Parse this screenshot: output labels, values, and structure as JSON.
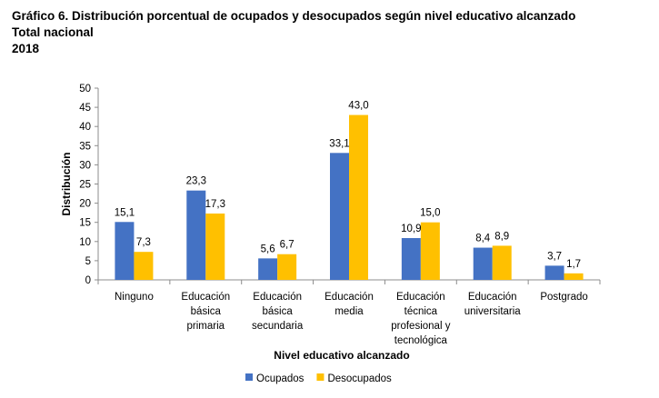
{
  "title": {
    "line1": "Gráfico 6. Distribución porcentual de ocupados y desocupados según nivel educativo alcanzado",
    "line2": "Total nacional",
    "line3": "2018"
  },
  "chart_data": {
    "type": "bar",
    "categories": [
      [
        "Ninguno"
      ],
      [
        "Educación",
        "básica",
        "primaria"
      ],
      [
        "Educación",
        "básica",
        "secundaria"
      ],
      [
        "Educación",
        "media"
      ],
      [
        "Educación",
        "técnica",
        "profesional y",
        "tecnológica"
      ],
      [
        "Educación",
        "universitaria"
      ],
      [
        "Postgrado"
      ]
    ],
    "series": [
      {
        "name": "Ocupados",
        "color": "#4472C4",
        "values": [
          15.1,
          23.3,
          5.6,
          33.1,
          10.9,
          8.4,
          3.7
        ],
        "labels": [
          "15,1",
          "23,3",
          "5,6",
          "33,1",
          "10,9",
          "8,4",
          "3,7"
        ]
      },
      {
        "name": "Desocupados",
        "color": "#FFC000",
        "values": [
          7.3,
          17.3,
          6.7,
          43.0,
          15.0,
          8.9,
          1.7
        ],
        "labels": [
          "7,3",
          "17,3",
          "6,7",
          "43,0",
          "15,0",
          "8,9",
          "1,7"
        ]
      }
    ],
    "xlabel": "Nivel educativo alcanzado",
    "ylabel": "Distribución",
    "ylim": [
      0,
      50
    ],
    "yticks": [
      0,
      5,
      10,
      15,
      20,
      25,
      30,
      35,
      40,
      45,
      50
    ],
    "grid": false,
    "legend_position": "bottom"
  }
}
